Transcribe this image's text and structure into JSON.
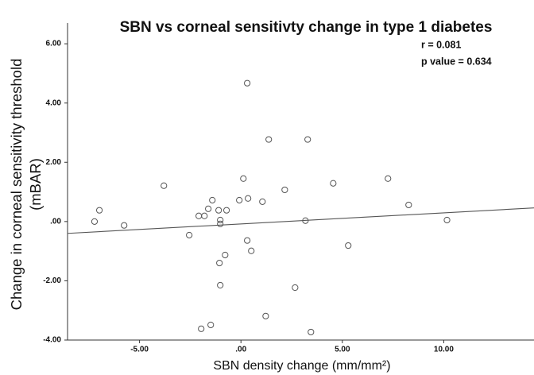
{
  "chart_data": {
    "type": "scatter",
    "title": "SBN vs corneal sensitivty change in type 1 diabetes",
    "annotations": [
      "r = 0.081",
      "p value = 0.634"
    ],
    "xlabel": "SBN density change (mm/mm²)",
    "ylabel": [
      "Change in corneal sensitivity threshold",
      "(mBAR)"
    ],
    "x": [
      -7.22,
      -6.98,
      -5.76,
      -3.8,
      -2.55,
      -2.08,
      -1.8,
      -1.61,
      -1.41,
      -1.1,
      -1.02,
      -1.02,
      -0.71,
      -0.78,
      -1.06,
      -1.02,
      -1.96,
      -1.49,
      -0.08,
      0.12,
      0.35,
      0.31,
      0.31,
      0.51,
      1.06,
      1.37,
      1.22,
      2.16,
      2.67,
      3.18,
      3.29,
      3.45,
      4.55,
      5.29,
      7.25,
      8.27,
      10.16
    ],
    "values": [
      0.0,
      0.38,
      -0.13,
      1.21,
      -0.46,
      0.19,
      0.19,
      0.43,
      0.72,
      0.38,
      0.05,
      -0.08,
      0.38,
      -1.13,
      -1.4,
      -2.15,
      -3.62,
      -3.49,
      0.72,
      1.45,
      0.78,
      4.67,
      -0.64,
      -0.99,
      0.67,
      2.77,
      -3.19,
      1.07,
      -2.23,
      0.03,
      2.77,
      -3.73,
      1.29,
      -0.81,
      1.45,
      0.56,
      0.05
    ],
    "color": "#555555",
    "trendline": {
      "x": [
        -8.55,
        14.45
      ],
      "y": [
        -0.4,
        0.46
      ],
      "color": "#555555"
    },
    "xlim": [
      -8.55,
      14.45
    ],
    "ylim": [
      -4,
      6.7
    ],
    "xticks": [
      {
        "value": -5,
        "label": "-5.00"
      },
      {
        "value": 0,
        "label": ".00"
      },
      {
        "value": 5,
        "label": "5.00"
      },
      {
        "value": 10,
        "label": "10.00"
      }
    ],
    "yticks": [
      {
        "value": -4,
        "label": "-4.00"
      },
      {
        "value": -2,
        "label": "-2.00"
      },
      {
        "value": 0,
        "label": ".00"
      },
      {
        "value": 2,
        "label": "2.00"
      },
      {
        "value": 4,
        "label": "4.00"
      },
      {
        "value": 6,
        "label": "6.00"
      }
    ],
    "grid": false
  }
}
